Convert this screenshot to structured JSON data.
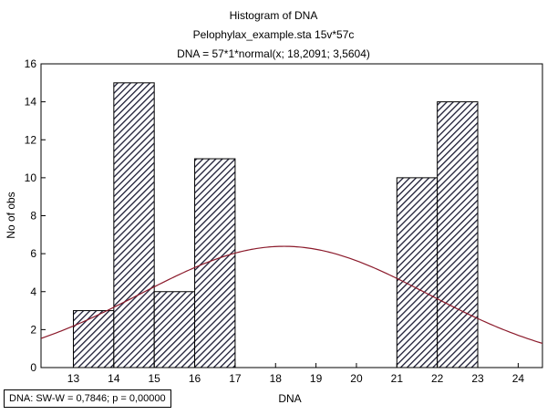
{
  "chart_data": {
    "type": "bar",
    "title": "Histogram of DNA",
    "subtitle": "Pelophylax_example.sta 15v*57c",
    "formula": "DNA = 57*1*normal(x; 18,2091; 3,5604)",
    "xlabel": "DNA",
    "ylabel": "No of obs",
    "xlim": [
      12.2,
      24.6
    ],
    "ylim": [
      0,
      16
    ],
    "xticks": [
      13,
      14,
      15,
      16,
      17,
      18,
      19,
      20,
      21,
      22,
      23,
      24
    ],
    "yticks": [
      0,
      2,
      4,
      6,
      8,
      10,
      12,
      14,
      16
    ],
    "bins": [
      {
        "start": 13,
        "end": 14,
        "count": 3
      },
      {
        "start": 14,
        "end": 15,
        "count": 15
      },
      {
        "start": 15,
        "end": 16,
        "count": 4
      },
      {
        "start": 16,
        "end": 17,
        "count": 11
      },
      {
        "start": 21,
        "end": 22,
        "count": 10
      },
      {
        "start": 22,
        "end": 23,
        "count": 14
      }
    ],
    "normal_fit": {
      "n": 57,
      "bin_width": 1,
      "mean": 18.2091,
      "sd": 3.5604,
      "color": "#8b1a2b"
    },
    "bar_fill": "hatched",
    "grid": false
  },
  "stats_box": {
    "text": "DNA:   SW-W = 0,7846; p = 0,00000"
  }
}
